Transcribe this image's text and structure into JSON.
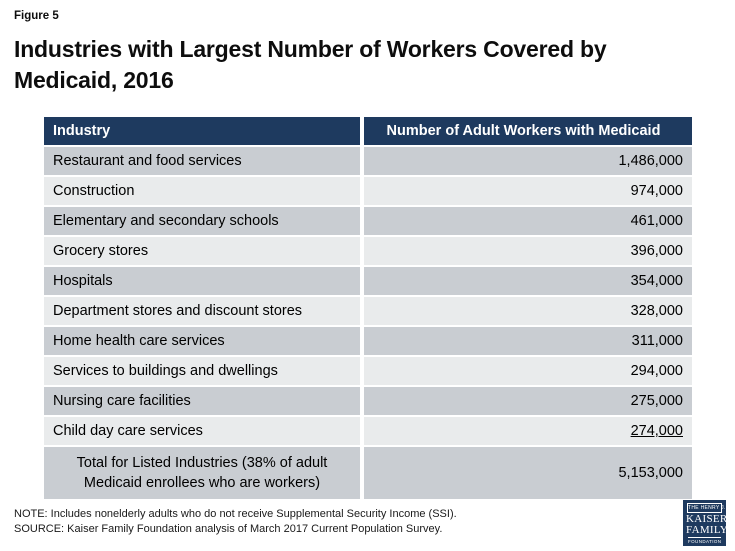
{
  "figure_label": "Figure 5",
  "title": "Industries with Largest Number of Workers Covered by Medicaid, 2016",
  "table": {
    "headers": [
      "Industry",
      "Number of Adult Workers with Medicaid"
    ],
    "rows": [
      {
        "industry": "Restaurant and food services",
        "value": "1,486,000"
      },
      {
        "industry": "Construction",
        "value": "974,000"
      },
      {
        "industry": "Elementary and secondary schools",
        "value": "461,000"
      },
      {
        "industry": "Grocery stores",
        "value": "396,000"
      },
      {
        "industry": "Hospitals",
        "value": "354,000"
      },
      {
        "industry": "Department stores and discount stores",
        "value": "328,000"
      },
      {
        "industry": "Home health care services",
        "value": "311,000"
      },
      {
        "industry": "Services to buildings and dwellings",
        "value": "294,000"
      },
      {
        "industry": "Nursing care facilities",
        "value": "275,000"
      },
      {
        "industry": "Child day care services",
        "value": "274,000"
      }
    ],
    "total": {
      "label": "Total for Listed Industries (38% of adult Medicaid enrollees who are workers)",
      "value": "5,153,000"
    }
  },
  "notes": {
    "note": "NOTE: Includes nonelderly adults who do not receive Supplemental Security Income (SSI).",
    "source": "SOURCE: Kaiser Family Foundation analysis of March 2017 Current Population Survey."
  },
  "logo": {
    "line1": "THE HENRY J.",
    "line2": "KAISER",
    "line3": "FAMILY",
    "line4": "FOUNDATION"
  },
  "colors": {
    "header_bg": "#1e3a5f",
    "header_text": "#ffffff",
    "row_dark": "#c9cdd2",
    "row_light": "#e9ebec",
    "logo_bg": "#1e3a5f",
    "text": "#000000"
  },
  "chart_data": {
    "type": "table",
    "title": "Industries with Largest Number of Workers Covered by Medicaid, 2016",
    "columns": [
      "Industry",
      "Number of Adult Workers with Medicaid"
    ],
    "rows": [
      [
        "Restaurant and food services",
        1486000
      ],
      [
        "Construction",
        974000
      ],
      [
        "Elementary and secondary schools",
        461000
      ],
      [
        "Grocery stores",
        396000
      ],
      [
        "Hospitals",
        354000
      ],
      [
        "Department stores and discount stores",
        328000
      ],
      [
        "Home health care services",
        311000
      ],
      [
        "Services to buildings and dwellings",
        294000
      ],
      [
        "Nursing care facilities",
        275000
      ],
      [
        "Child day care services",
        274000
      ]
    ],
    "total": [
      "Total for Listed Industries (38% of adult Medicaid enrollees who are workers)",
      5153000
    ]
  }
}
